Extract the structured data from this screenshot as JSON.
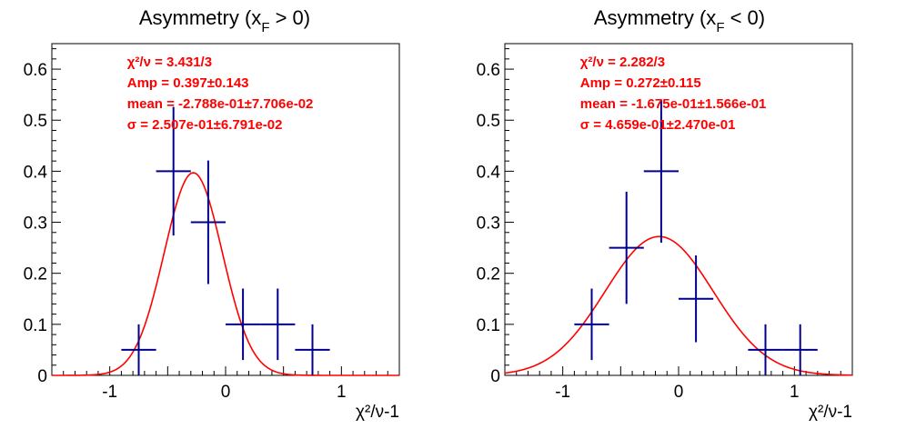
{
  "chart_data": [
    {
      "type": "scatter",
      "title_main": "Asymmetry (x",
      "title_sub": "F",
      "title_end": " > 0)",
      "xlabel": "χ²/ν-1",
      "xlim": [
        -1.5,
        1.5
      ],
      "ylim": [
        0,
        0.65
      ],
      "xticks": [
        -1,
        0,
        1
      ],
      "xtick_labels": [
        "-1",
        "0",
        "1"
      ],
      "yticks": [
        0,
        0.1,
        0.2,
        0.3,
        0.4,
        0.5,
        0.6
      ],
      "ytick_labels": [
        "0",
        "0.1",
        "0.2",
        "0.3",
        "0.4",
        "0.5",
        "0.6"
      ],
      "points": [
        {
          "x": -0.75,
          "y": 0.05,
          "xerr": 0.15,
          "yerr": 0.05
        },
        {
          "x": -0.45,
          "y": 0.4,
          "xerr": 0.15,
          "yerr": 0.126
        },
        {
          "x": -0.15,
          "y": 0.3,
          "xerr": 0.15,
          "yerr": 0.121
        },
        {
          "x": 0.15,
          "y": 0.1,
          "xerr": 0.15,
          "yerr": 0.07
        },
        {
          "x": 0.45,
          "y": 0.1,
          "xerr": 0.15,
          "yerr": 0.07
        },
        {
          "x": 0.75,
          "y": 0.05,
          "xerr": 0.15,
          "yerr": 0.05
        }
      ],
      "fit": {
        "amp": 0.397,
        "mean": -0.2788,
        "sigma": 0.2507
      },
      "stats": [
        "χ²/ν = 3.431/3",
        "Amp = 0.397±0.143",
        "mean = -2.788e-01±7.706e-02",
        "σ = 2.507e-01±6.791e-02"
      ],
      "grid": false,
      "point_color": "#00008b",
      "fit_color": "#ff0000"
    },
    {
      "type": "scatter",
      "title_main": "Asymmetry (x",
      "title_sub": "F",
      "title_end": " < 0)",
      "xlabel": "χ²/ν-1",
      "xlim": [
        -1.5,
        1.5
      ],
      "ylim": [
        0,
        0.65
      ],
      "xticks": [
        -1,
        0,
        1
      ],
      "xtick_labels": [
        "-1",
        "0",
        "1"
      ],
      "yticks": [
        0,
        0.1,
        0.2,
        0.3,
        0.4,
        0.5,
        0.6
      ],
      "ytick_labels": [
        "0",
        "0.1",
        "0.2",
        "0.3",
        "0.4",
        "0.5",
        "0.6"
      ],
      "points": [
        {
          "x": -0.75,
          "y": 0.1,
          "xerr": 0.15,
          "yerr": 0.07
        },
        {
          "x": -0.45,
          "y": 0.25,
          "xerr": 0.15,
          "yerr": 0.11
        },
        {
          "x": -0.15,
          "y": 0.4,
          "xerr": 0.15,
          "yerr": 0.14
        },
        {
          "x": 0.15,
          "y": 0.15,
          "xerr": 0.15,
          "yerr": 0.085
        },
        {
          "x": 0.75,
          "y": 0.05,
          "xerr": 0.15,
          "yerr": 0.05
        },
        {
          "x": 1.05,
          "y": 0.05,
          "xerr": 0.15,
          "yerr": 0.05
        }
      ],
      "fit": {
        "amp": 0.272,
        "mean": -0.1675,
        "sigma": 0.4659
      },
      "stats": [
        "χ²/ν = 2.282/3",
        "Amp = 0.272±0.115",
        "mean = -1.675e-01±1.566e-01",
        "σ = 4.659e-01±2.470e-01"
      ],
      "grid": false,
      "point_color": "#00008b",
      "fit_color": "#ff0000"
    }
  ]
}
